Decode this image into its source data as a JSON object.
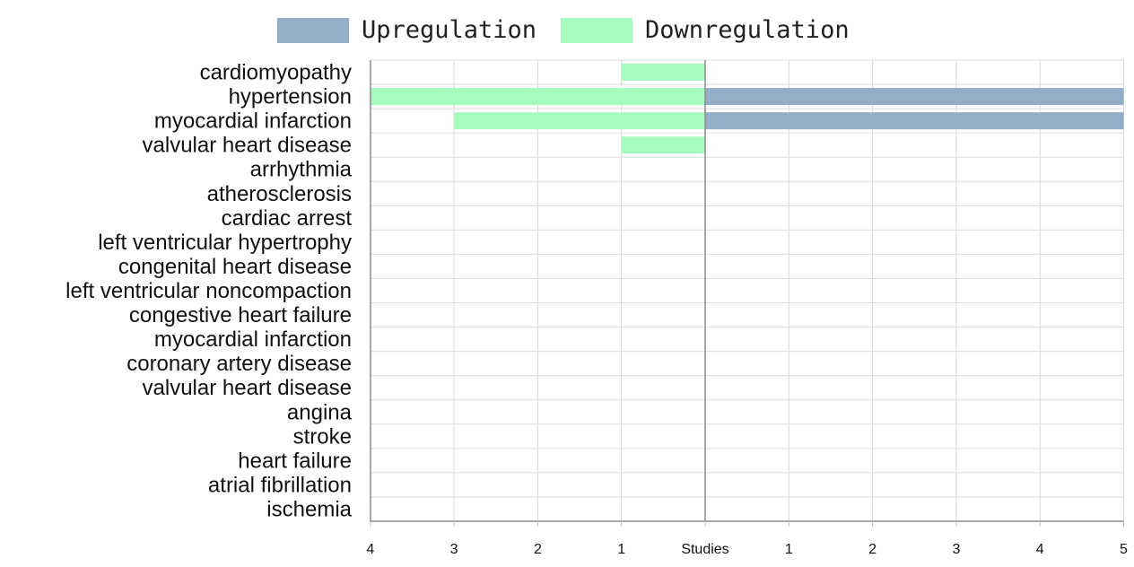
{
  "chart_data": {
    "type": "bar",
    "orientation": "horizontal-diverging",
    "categories": [
      "cardiomyopathy",
      "hypertension",
      "myocardial infarction",
      "valvular heart disease",
      "arrhythmia",
      "atherosclerosis",
      "cardiac arrest",
      "left ventricular hypertrophy",
      "congenital heart disease",
      "left ventricular noncompaction",
      "congestive heart failure",
      "myocardial infarction",
      "coronary artery disease",
      "valvular heart disease",
      "angina",
      "stroke",
      "heart failure",
      "atrial fibrillation",
      "ischemia"
    ],
    "series": [
      {
        "name": "Upregulation",
        "color": "#94adc8",
        "values": [
          0,
          5,
          5,
          0,
          0,
          0,
          0,
          0,
          0,
          0,
          0,
          0,
          0,
          0,
          0,
          0,
          0,
          0,
          0
        ]
      },
      {
        "name": "Downregulation",
        "color": "#a6fbbf",
        "values": [
          1,
          4,
          3,
          1,
          0,
          0,
          0,
          0,
          0,
          0,
          0,
          0,
          0,
          0,
          0,
          0,
          0,
          0,
          0
        ]
      }
    ],
    "x_ticks_left": [
      "4",
      "3",
      "2",
      "1"
    ],
    "x_center_label": "Studies",
    "x_ticks_right": [
      "1",
      "2",
      "3",
      "4",
      "5"
    ],
    "xlim_left": 4,
    "xlim_right": 5,
    "legend_position": "top",
    "grid": true
  }
}
